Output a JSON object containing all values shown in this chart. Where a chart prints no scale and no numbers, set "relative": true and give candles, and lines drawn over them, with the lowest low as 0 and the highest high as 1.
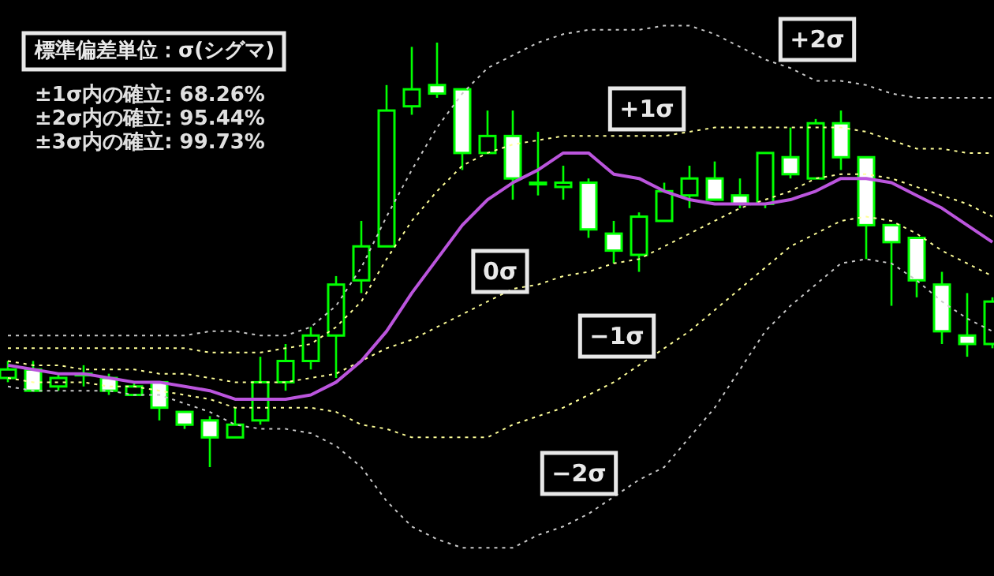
{
  "chart_data": {
    "type": "candlestick",
    "relative": true,
    "title": "標準偏差単位：σ(シグマ)",
    "annotations": [
      "±1σ内の確立: 68.26%",
      "±2σ内の確立: 95.44%",
      "±3σ内の確立: 99.73%",
      "+2σ",
      "+1σ",
      "0σ",
      "−1σ",
      "−2σ"
    ],
    "categories": [
      null,
      null,
      null,
      null,
      null,
      null,
      null,
      null,
      null,
      null,
      null,
      null,
      null,
      null,
      null,
      null,
      null,
      null,
      null,
      null,
      null,
      null,
      null,
      null,
      null,
      null,
      null,
      null,
      null,
      null,
      null,
      null,
      null,
      null,
      null,
      null,
      null,
      null,
      null,
      null
    ],
    "color": "#00ff00",
    "colors": [
      "#000000",
      "#ffffff",
      "#000000",
      "#000000",
      "#ffffff",
      "#000000",
      "#ffffff",
      "#ffffff",
      "#ffffff",
      "#000000",
      "#000000",
      "#000000",
      "#000000",
      "#000000",
      "#000000",
      "#000000",
      "#000000",
      "#ffffff",
      "#ffffff",
      "#000000",
      "#ffffff",
      "#000000",
      "#000000",
      "#ffffff",
      "#ffffff",
      "#000000",
      "#000000",
      "#000000",
      "#ffffff",
      "#ffffff",
      "#000000",
      "#ffffff",
      "#000000",
      "#ffffff",
      "#ffffff",
      "#ffffff",
      "#ffffff",
      "#ffffff",
      "#ffffff",
      "#000000"
    ],
    "ohlc": [
      [
        0.21,
        0.25,
        0.2,
        0.23
      ],
      [
        0.23,
        0.25,
        0.18,
        0.18
      ],
      [
        0.19,
        0.22,
        0.18,
        0.21
      ],
      [
        0.22,
        0.24,
        0.19,
        0.22
      ],
      [
        0.21,
        0.22,
        0.17,
        0.18
      ],
      [
        0.17,
        0.2,
        0.17,
        0.19
      ],
      [
        0.2,
        0.2,
        0.11,
        0.14
      ],
      [
        0.13,
        0.13,
        0.09,
        0.1
      ],
      [
        0.11,
        0.12,
        0,
        0.07
      ],
      [
        0.07,
        0.14,
        0.07,
        0.1
      ],
      [
        0.11,
        0.26,
        0.1,
        0.2
      ],
      [
        0.2,
        0.29,
        0.18,
        0.25
      ],
      [
        0.25,
        0.33,
        0.23,
        0.31
      ],
      [
        0.31,
        0.45,
        0.21,
        0.43
      ],
      [
        0.44,
        0.58,
        0.41,
        0.52
      ],
      [
        0.52,
        0.9,
        0.52,
        0.84
      ],
      [
        0.85,
        0.99,
        0.83,
        0.89
      ],
      [
        0.9,
        1.0,
        0.87,
        0.88
      ],
      [
        0.89,
        0.89,
        0.7,
        0.74
      ],
      [
        0.74,
        0.84,
        0.74,
        0.78
      ],
      [
        0.78,
        0.84,
        0.63,
        0.68
      ],
      [
        0.67,
        0.79,
        0.64,
        0.67
      ],
      [
        0.66,
        0.71,
        0.63,
        0.67
      ],
      [
        0.67,
        0.68,
        0.54,
        0.56
      ],
      [
        0.55,
        0.58,
        0.48,
        0.51
      ],
      [
        0.5,
        0.6,
        0.46,
        0.59
      ],
      [
        0.58,
        0.67,
        0.58,
        0.65
      ],
      [
        0.64,
        0.71,
        0.61,
        0.68
      ],
      [
        0.68,
        0.72,
        0.63,
        0.63
      ],
      [
        0.64,
        0.68,
        0.61,
        0.62
      ],
      [
        0.62,
        0.74,
        0.61,
        0.74
      ],
      [
        0.73,
        0.8,
        0.68,
        0.69
      ],
      [
        0.68,
        0.82,
        0.68,
        0.81
      ],
      [
        0.81,
        0.84,
        0.7,
        0.73
      ],
      [
        0.73,
        0.73,
        0.49,
        0.57
      ],
      [
        0.57,
        0.57,
        0.38,
        0.53
      ],
      [
        0.54,
        0.54,
        0.4,
        0.44
      ],
      [
        0.43,
        0.46,
        0.29,
        0.32
      ],
      [
        0.31,
        0.41,
        0.26,
        0.29
      ],
      [
        0.29,
        0.4,
        0.28,
        0.39
      ]
    ],
    "series": [
      {
        "type": "line",
        "color": "#c8c8c8",
        "line_style": "dotted",
        "values": [
          0.31,
          0.31,
          0.31,
          0.31,
          0.31,
          0.31,
          0.31,
          0.31,
          0.32,
          0.32,
          0.31,
          0.31,
          0.33,
          0.38,
          0.47,
          0.59,
          0.7,
          0.8,
          0.88,
          0.94,
          0.97,
          1.0,
          1.02,
          1.03,
          1.03,
          1.03,
          1.04,
          1.04,
          1.02,
          0.99,
          0.96,
          0.94,
          0.91,
          0.91,
          0.9,
          0.88,
          0.87,
          0.87,
          0.87,
          0.87
        ]
      },
      {
        "type": "line",
        "color": "#ffff99",
        "line_style": "dotted",
        "values": [
          0.28,
          0.28,
          0.28,
          0.28,
          0.28,
          0.28,
          0.28,
          0.28,
          0.27,
          0.27,
          0.27,
          0.28,
          0.29,
          0.33,
          0.39,
          0.49,
          0.58,
          0.65,
          0.71,
          0.74,
          0.76,
          0.77,
          0.78,
          0.78,
          0.78,
          0.78,
          0.78,
          0.79,
          0.8,
          0.8,
          0.8,
          0.8,
          0.8,
          0.8,
          0.79,
          0.77,
          0.75,
          0.75,
          0.74,
          0.74
        ]
      },
      {
        "type": "line",
        "color": "#ffff99",
        "line_style": "dotted",
        "values": [
          0.25,
          0.24,
          0.24,
          0.23,
          0.23,
          0.23,
          0.22,
          0.22,
          0.21,
          0.2,
          0.2,
          0.2,
          0.21,
          0.22,
          0.25,
          0.28,
          0.3,
          0.33,
          0.36,
          0.39,
          0.42,
          0.43,
          0.45,
          0.46,
          0.48,
          0.49,
          0.52,
          0.55,
          0.58,
          0.61,
          0.63,
          0.65,
          0.68,
          0.69,
          0.69,
          0.68,
          0.66,
          0.64,
          0.62,
          0.59
        ]
      },
      {
        "type": "line",
        "color": "#bb55dd",
        "line_style": "solid",
        "values": [
          0.24,
          0.23,
          0.22,
          0.22,
          0.21,
          0.2,
          0.2,
          0.19,
          0.18,
          0.16,
          0.16,
          0.16,
          0.17,
          0.2,
          0.25,
          0.32,
          0.41,
          0.49,
          0.57,
          0.63,
          0.67,
          0.7,
          0.74,
          0.74,
          0.69,
          0.68,
          0.65,
          0.63,
          0.62,
          0.62,
          0.62,
          0.63,
          0.65,
          0.68,
          0.68,
          0.67,
          0.64,
          0.61,
          0.57,
          0.53
        ]
      },
      {
        "type": "line",
        "color": "#ffff99",
        "line_style": "dotted",
        "values": [
          0.21,
          0.2,
          0.2,
          0.2,
          0.19,
          0.19,
          0.18,
          0.17,
          0.16,
          0.14,
          0.14,
          0.14,
          0.14,
          0.13,
          0.1,
          0.09,
          0.07,
          0.07,
          0.07,
          0.07,
          0.1,
          0.12,
          0.14,
          0.17,
          0.2,
          0.24,
          0.28,
          0.32,
          0.37,
          0.42,
          0.47,
          0.52,
          0.55,
          0.58,
          0.59,
          0.58,
          0.55,
          0.51,
          0.48,
          0.45
        ]
      },
      {
        "type": "line",
        "color": "#c8c8c8",
        "line_style": "dotted",
        "values": [
          0.19,
          0.18,
          0.18,
          0.18,
          0.18,
          0.17,
          0.17,
          0.15,
          0.13,
          0.1,
          0.09,
          0.09,
          0.08,
          0.05,
          0.0,
          -0.08,
          -0.14,
          -0.17,
          -0.19,
          -0.19,
          -0.19,
          -0.16,
          -0.14,
          -0.11,
          -0.07,
          -0.03,
          0.0,
          0.07,
          0.14,
          0.23,
          0.32,
          0.38,
          0.43,
          0.48,
          0.49,
          0.48,
          0.44,
          0.39,
          0.35,
          0.32
        ]
      }
    ]
  }
}
